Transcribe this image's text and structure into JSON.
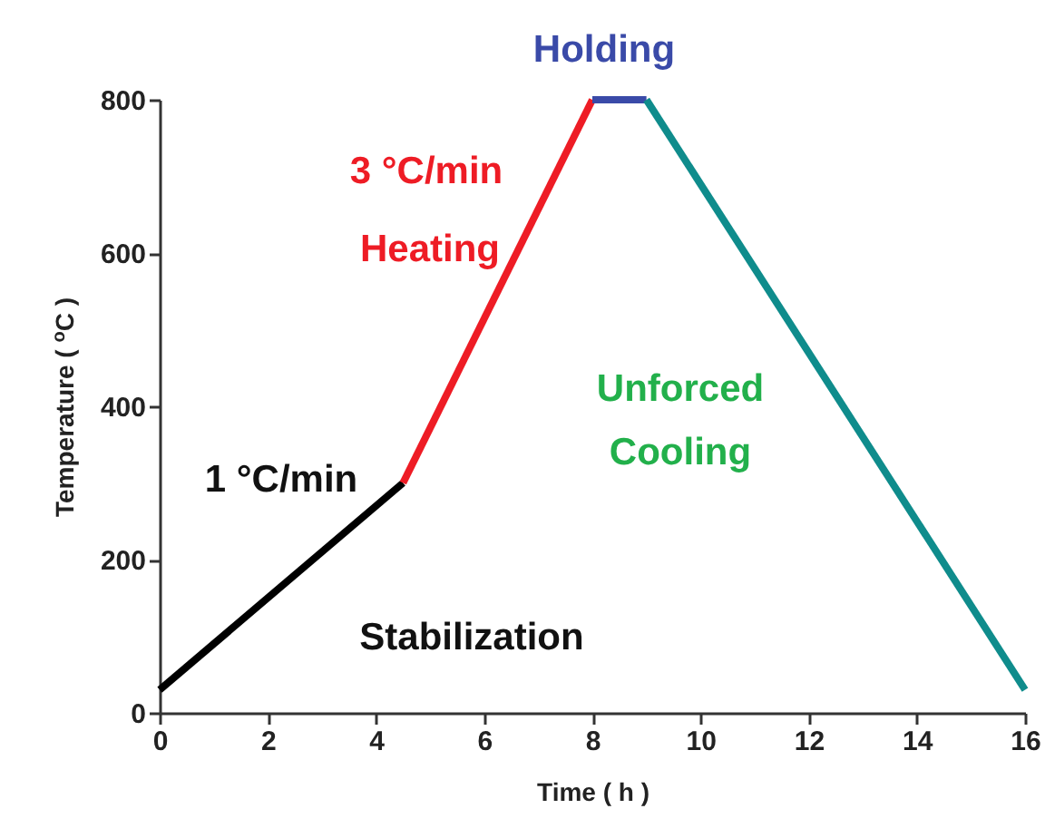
{
  "chart_data": {
    "type": "line",
    "xlabel": "Time ( h )",
    "ylabel": "Temperature ( $^{o}$C )",
    "xlim": [
      0,
      16
    ],
    "xticks": [
      0,
      2,
      4,
      6,
      8,
      10,
      12,
      14,
      16
    ],
    "ylim": [
      0,
      800
    ],
    "yticks": [
      0,
      200,
      400,
      600,
      800
    ],
    "series": [
      {
        "color": "#000000",
        "x": [
          0,
          4.5
        ],
        "values": [
          30,
          300
        ]
      },
      {
        "color": "#ee1c25",
        "x": [
          4.5,
          8
        ],
        "values": [
          300,
          800
        ]
      },
      {
        "color": "#3a4aa8",
        "x": [
          8,
          9
        ],
        "values": [
          800,
          800
        ]
      },
      {
        "color": "#0f8c8c",
        "x": [
          9,
          16
        ],
        "values": [
          800,
          30
        ]
      }
    ],
    "annotations": [
      "1 °C/min",
      "Stabilization",
      "3 °C/min",
      "Heating",
      "Holding",
      "Unforced",
      "Cooling"
    ]
  }
}
